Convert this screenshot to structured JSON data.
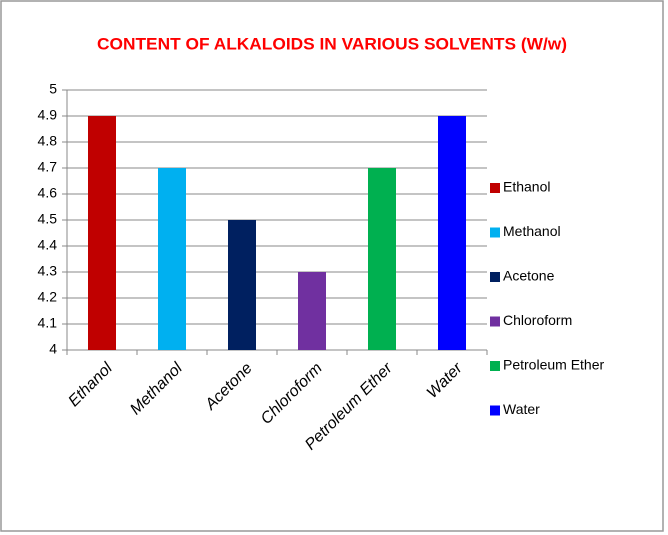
{
  "chart_data": {
    "type": "bar",
    "title": "CONTENT OF ALKALOIDS IN VARIOUS SOLVENTS (W/w)",
    "categories": [
      "Ethanol",
      "Methanol",
      "Acetone",
      "Chloroform",
      "Petroleum Ether",
      "Water"
    ],
    "values": [
      4.9,
      4.7,
      4.5,
      4.3,
      4.7,
      4.9
    ],
    "colors": [
      "#c00000",
      "#00b0f0",
      "#002060",
      "#7030a0",
      "#00b050",
      "#0000ff"
    ],
    "ylim": [
      4,
      5
    ],
    "yticks": [
      4,
      4.1,
      4.2,
      4.3,
      4.4,
      4.5,
      4.6,
      4.7,
      4.8,
      4.9,
      5
    ],
    "grid": true,
    "legend": "right"
  }
}
